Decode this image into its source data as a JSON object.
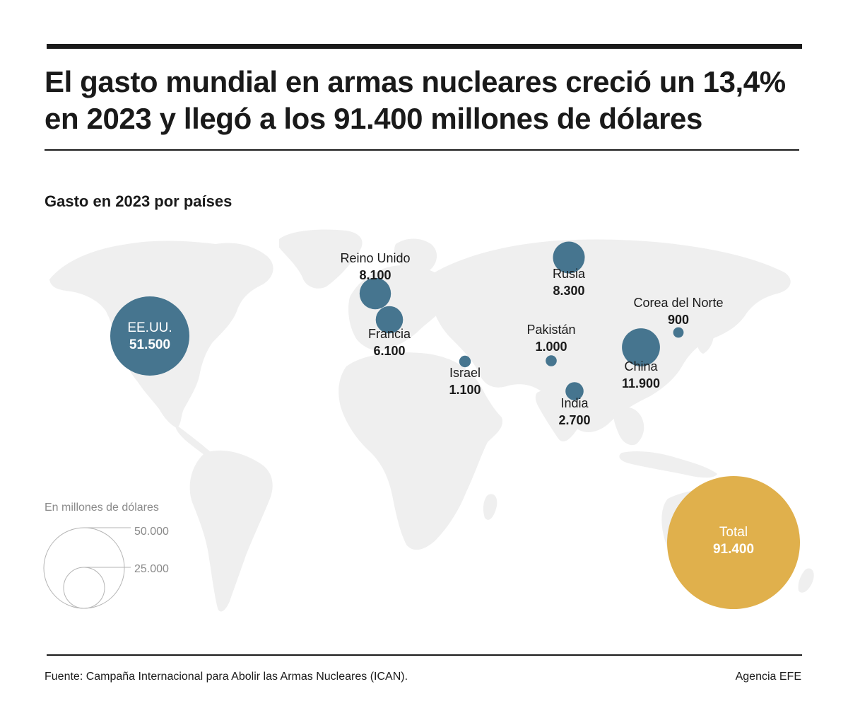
{
  "header": {
    "title_line1": "El gasto mundial en armas nucleares creció un 13,4%",
    "title_line2": "en 2023 y llegó a los 91.400 millones de dólares"
  },
  "subtitle": "Gasto en 2023 por países",
  "map": {
    "land_color": "#efefef",
    "bubble_color": "#46758f",
    "total_color": "#e0b04c",
    "countries": [
      {
        "id": "eeuu",
        "name": "EE.UU.",
        "value": 51500,
        "value_label": "51.500"
      },
      {
        "id": "reino-unido",
        "name": "Reino Unido",
        "value": 8100,
        "value_label": "8.100"
      },
      {
        "id": "francia",
        "name": "Francia",
        "value": 6100,
        "value_label": "6.100"
      },
      {
        "id": "israel",
        "name": "Israel",
        "value": 1100,
        "value_label": "1.100"
      },
      {
        "id": "rusia",
        "name": "Rusia",
        "value": 8300,
        "value_label": "8.300"
      },
      {
        "id": "pakistan",
        "name": "Pakistán",
        "value": 1000,
        "value_label": "1.000"
      },
      {
        "id": "india",
        "name": "India",
        "value": 2700,
        "value_label": "2.700"
      },
      {
        "id": "china",
        "name": "China",
        "value": 11900,
        "value_label": "11.900"
      },
      {
        "id": "corea-del-norte",
        "name": "Corea del Norte",
        "value": 900,
        "value_label": "900"
      }
    ],
    "total": {
      "name": "Total",
      "value": 91400,
      "value_label": "91.400"
    }
  },
  "legend": {
    "title": "En millones de dólares",
    "large_label": "50.000",
    "small_label": "25.000"
  },
  "footer": {
    "source": "Fuente: Campaña Internacional para Abolir las Armas Nucleares (ICAN).",
    "credit": "Agencia EFE"
  }
}
